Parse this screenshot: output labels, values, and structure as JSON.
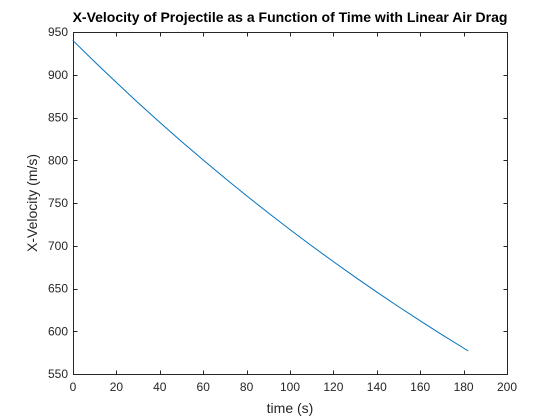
{
  "chart_data": {
    "type": "line",
    "title": "X-Velocity of Projectile as a Function of Time with Linear Air Drag",
    "xlabel": "time (s)",
    "ylabel": "X-Velocity (m/s)",
    "xlim": [
      0,
      200
    ],
    "ylim": [
      550,
      950
    ],
    "xticks": [
      0,
      20,
      40,
      60,
      80,
      100,
      120,
      140,
      160,
      180,
      200
    ],
    "yticks": [
      550,
      600,
      650,
      700,
      750,
      800,
      850,
      900,
      950
    ],
    "grid": false,
    "legend": null,
    "series": [
      {
        "color": "#0072BD",
        "x": [
          0,
          10,
          20,
          30,
          40,
          50,
          60,
          70,
          80,
          90,
          100,
          110,
          120,
          130,
          140,
          150,
          160,
          170,
          182
        ],
        "y": [
          940,
          915.1,
          890.9,
          867.3,
          844.3,
          822.0,
          800.3,
          779.1,
          758.5,
          738.4,
          718.9,
          699.9,
          681.4,
          663.4,
          645.8,
          628.8,
          612.2,
          596.0,
          577.2
        ]
      }
    ]
  }
}
